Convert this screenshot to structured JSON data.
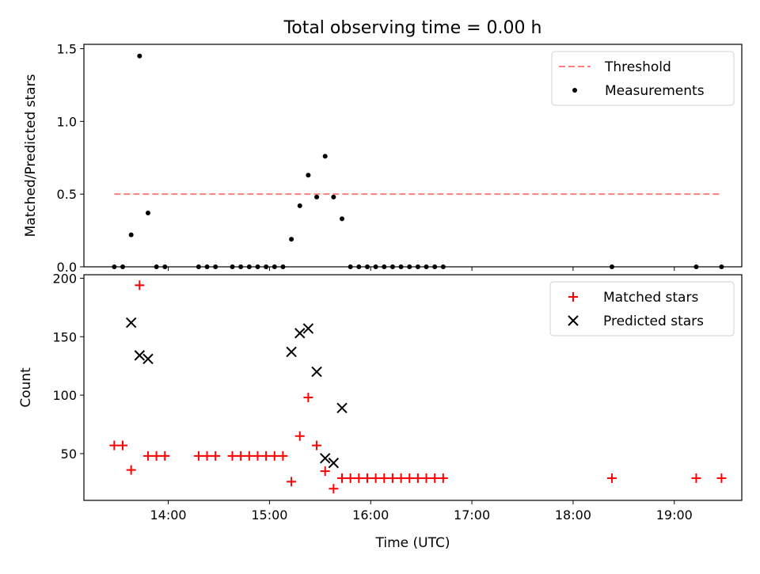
{
  "chart_data": [
    {
      "type": "scatter",
      "title": "Total observing time = 0.00 h",
      "xlabel": "",
      "ylabel": "Matched/Predicted stars",
      "ylim": [
        0,
        1.53
      ],
      "yticks": [
        0.0,
        0.5,
        1.0,
        1.5
      ],
      "ytick_labels": [
        "0.0",
        "0.5",
        "1.0",
        "1.5"
      ],
      "xlim": [
        "13:10",
        "19:40"
      ],
      "xticks": [
        "14:00",
        "15:00",
        "16:00",
        "17:00",
        "18:00",
        "19:00"
      ],
      "grid": false,
      "legend_position": "top-right",
      "series": [
        {
          "name": "Threshold",
          "kind": "line",
          "style": "dashed",
          "color": "#ff7f7f",
          "x": [
            "13:28",
            "19:28"
          ],
          "y": [
            0.5,
            0.5
          ]
        },
        {
          "name": "Measurements",
          "kind": "scatter",
          "marker": "dot",
          "color": "#000000",
          "x": [
            "13:28",
            "13:33",
            "13:38",
            "13:43",
            "13:48",
            "13:53",
            "13:58",
            "14:18",
            "14:23",
            "14:28",
            "14:38",
            "14:43",
            "14:48",
            "14:53",
            "14:58",
            "15:03",
            "15:08",
            "15:13",
            "15:18",
            "15:23",
            "15:28",
            "15:33",
            "15:38",
            "15:43",
            "15:48",
            "15:53",
            "15:58",
            "16:03",
            "16:08",
            "16:13",
            "16:18",
            "16:23",
            "16:28",
            "16:33",
            "16:38",
            "16:43",
            "18:23",
            "19:13",
            "19:28"
          ],
          "y": [
            0,
            0,
            0.22,
            1.45,
            0.37,
            0,
            0,
            0,
            0,
            0,
            0,
            0,
            0,
            0,
            0,
            0,
            0,
            0.19,
            0.42,
            0.63,
            0.48,
            0.76,
            0.48,
            0.33,
            0,
            0,
            0,
            0,
            0,
            0,
            0,
            0,
            0,
            0,
            0,
            0,
            0,
            0,
            0
          ]
        }
      ]
    },
    {
      "type": "scatter",
      "title": "",
      "xlabel": "Time (UTC)",
      "ylabel": "Count",
      "ylim": [
        10,
        203
      ],
      "yticks": [
        50,
        100,
        150,
        200
      ],
      "ytick_labels": [
        "50",
        "100",
        "150",
        "200"
      ],
      "xlim": [
        "13:10",
        "19:40"
      ],
      "xticks": [
        "14:00",
        "15:00",
        "16:00",
        "17:00",
        "18:00",
        "19:00"
      ],
      "xtick_labels": [
        "14:00",
        "15:00",
        "16:00",
        "17:00",
        "18:00",
        "19:00"
      ],
      "grid": false,
      "legend_position": "top-right",
      "series": [
        {
          "name": "Matched stars",
          "kind": "scatter",
          "marker": "plus",
          "color": "#ff0000",
          "x": [
            "13:28",
            "13:33",
            "13:38",
            "13:43",
            "13:48",
            "13:53",
            "13:58",
            "14:18",
            "14:23",
            "14:28",
            "14:38",
            "14:43",
            "14:48",
            "14:53",
            "14:58",
            "15:03",
            "15:08",
            "15:13",
            "15:18",
            "15:23",
            "15:28",
            "15:33",
            "15:38",
            "15:43",
            "15:48",
            "15:53",
            "15:58",
            "16:03",
            "16:08",
            "16:13",
            "16:18",
            "16:23",
            "16:28",
            "16:33",
            "16:38",
            "16:43",
            "18:23",
            "19:13",
            "19:28"
          ],
          "y": [
            57,
            57,
            36,
            194,
            48,
            48,
            48,
            48,
            48,
            48,
            48,
            48,
            48,
            48,
            48,
            48,
            48,
            26,
            65,
            98,
            57,
            35,
            20,
            29,
            29,
            29,
            29,
            29,
            29,
            29,
            29,
            29,
            29,
            29,
            29,
            29,
            29,
            29,
            29
          ]
        },
        {
          "name": "Predicted stars",
          "kind": "scatter",
          "marker": "x",
          "color": "#000000",
          "x": [
            "13:38",
            "13:43",
            "13:48",
            "15:13",
            "15:18",
            "15:23",
            "15:28",
            "15:33",
            "15:38",
            "15:43"
          ],
          "y": [
            162,
            134,
            131,
            137,
            153,
            157,
            120,
            46,
            42,
            89
          ]
        }
      ]
    }
  ]
}
